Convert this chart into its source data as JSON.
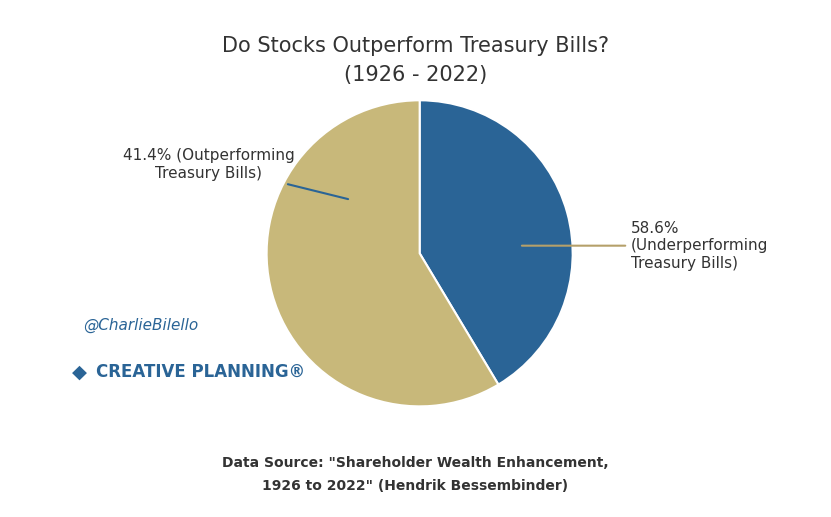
{
  "title_line1": "Do Stocks Outperform Treasury Bills?",
  "title_line2": "(1926 - 2022)",
  "slices": [
    41.4,
    58.6
  ],
  "slice_colors": [
    "#2a6496",
    "#c8b87a"
  ],
  "label_outperform": "41.4% (Outperforming\nTreasury Bills)",
  "label_underperform": "58.6%\n(Underperforming\nTreasury Bills)",
  "watermark": "@CharlieBilello",
  "brand": "CREATIVE PLANNING®",
  "datasource_line1": "Data Source: \"Shareholder Wealth Enhancement,",
  "datasource_line2": "1926 to 2022\" (Hendrik Bessembinder)",
  "background_color": "#ffffff",
  "title_fontsize": 15,
  "label_fontsize": 11,
  "watermark_fontsize": 11,
  "brand_fontsize": 12,
  "datasource_fontsize": 10,
  "outperform_color": "#2a6496",
  "underperform_color": "#b5a06a",
  "text_color": "#333333"
}
